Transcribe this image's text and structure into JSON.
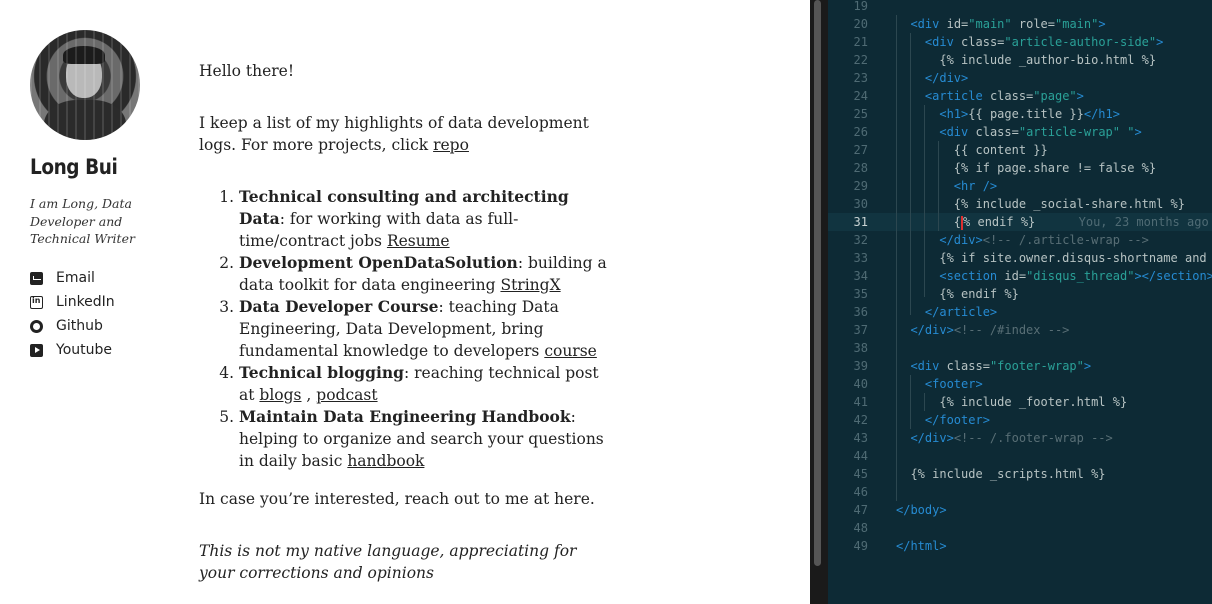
{
  "author": {
    "name": "Long Bui",
    "bio": "I am Long, Data Developer and Technical Writer",
    "links": [
      {
        "label": "Email",
        "icon": "envelope-icon"
      },
      {
        "label": "LinkedIn",
        "icon": "linkedin-icon"
      },
      {
        "label": "Github",
        "icon": "github-icon"
      },
      {
        "label": "Youtube",
        "icon": "youtube-icon"
      }
    ]
  },
  "content": {
    "greeting": "Hello there!",
    "intro_text": "I keep a list of my highlights of data development logs. For more projects, click ",
    "intro_link": "repo",
    "items": [
      {
        "title": "Technical consulting and architecting Data",
        "text": ": for working with data as full-time/contract jobs ",
        "links": [
          "Resume"
        ]
      },
      {
        "title": "Development OpenDataSolution",
        "text": ": building a data toolkit for data engineering ",
        "links": [
          "StringX"
        ]
      },
      {
        "title": "Data Developer Course",
        "text": ": teaching Data Engineering, Data Development, bring fundamental knowledge to developers ",
        "links": [
          "course"
        ]
      },
      {
        "title": "Technical blogging",
        "text": ": reaching technical post at ",
        "links": [
          "blogs",
          "podcast"
        ],
        "separator": " , "
      },
      {
        "title": "Maintain Data Engineering Handbook",
        "text": ": helping to organize and search your questions in daily basic ",
        "links": [
          "handbook"
        ]
      }
    ],
    "contact_line": "In case you’re interested, reach out to me at here.",
    "note": "This is not my native language, appreciating for your corrections and opinions"
  },
  "editor": {
    "lines": [
      {
        "n": "19",
        "html": ""
      },
      {
        "n": "20",
        "html": "  <span class='tag'>&lt;div</span> <span class='attr'>id=</span><span class='str'>\"main\"</span> <span class='attr'>role=</span><span class='str'>\"main\"</span><span class='tag'>&gt;</span>"
      },
      {
        "n": "21",
        "html": "    <span class='tag'>&lt;div</span> <span class='attr'>class=</span><span class='str'>\"article-author-side\"</span><span class='tag'>&gt;</span>"
      },
      {
        "n": "22",
        "html": "      {% include _author-bio.html %}"
      },
      {
        "n": "23",
        "html": "    <span class='tag'>&lt;/div&gt;</span>"
      },
      {
        "n": "24",
        "html": "    <span class='tag'>&lt;article</span> <span class='attr'>class=</span><span class='str'>\"page\"</span><span class='tag'>&gt;</span>"
      },
      {
        "n": "25",
        "html": "      <span class='tag'>&lt;h1&gt;</span>{{ page.title }}<span class='tag'>&lt;/h1&gt;</span>"
      },
      {
        "n": "26",
        "html": "      <span class='tag'>&lt;div</span> <span class='attr'>class=</span><span class='str'>\"article-wrap\" \"</span><span class='tag'>&gt;</span>"
      },
      {
        "n": "27",
        "html": "        {{ content }}"
      },
      {
        "n": "28",
        "html": "        {% if page.share != false %}"
      },
      {
        "n": "29",
        "html": "        <span class='tag'>&lt;hr /&gt;</span>"
      },
      {
        "n": "30",
        "html": "        {% include _social-share.html %}"
      },
      {
        "n": "31",
        "html": "        {<span class='cursor-mark'></span>% endif %}      <span class='blame'>You, 23 months ago</span>"
      },
      {
        "n": "32",
        "html": "      <span class='tag'>&lt;/div&gt;</span><span class='cmt'>&lt;!-- /.article-wrap --&gt;</span>"
      },
      {
        "n": "33",
        "html": "      {% if site.owner.disqus-shortname and"
      },
      {
        "n": "34",
        "html": "      <span class='tag'>&lt;section</span> <span class='attr'>id=</span><span class='str'>\"disqus_thread\"</span><span class='tag'>&gt;&lt;/section&gt;</span>"
      },
      {
        "n": "35",
        "html": "      {% endif %}"
      },
      {
        "n": "36",
        "html": "    <span class='tag'>&lt;/article&gt;</span>"
      },
      {
        "n": "37",
        "html": "  <span class='tag'>&lt;/div&gt;</span><span class='cmt'>&lt;!-- /#index --&gt;</span>"
      },
      {
        "n": "38",
        "html": ""
      },
      {
        "n": "39",
        "html": "  <span class='tag'>&lt;div</span> <span class='attr'>class=</span><span class='str'>\"footer-wrap\"</span><span class='tag'>&gt;</span>"
      },
      {
        "n": "40",
        "html": "    <span class='tag'>&lt;footer&gt;</span>"
      },
      {
        "n": "41",
        "html": "      {% include _footer.html %}"
      },
      {
        "n": "42",
        "html": "    <span class='tag'>&lt;/footer&gt;</span>"
      },
      {
        "n": "43",
        "html": "  <span class='tag'>&lt;/div&gt;</span><span class='cmt'>&lt;!-- /.footer-wrap --&gt;</span>"
      },
      {
        "n": "44",
        "html": ""
      },
      {
        "n": "45",
        "html": "  {% include _scripts.html %}"
      },
      {
        "n": "46",
        "html": ""
      },
      {
        "n": "47",
        "html": "<span class='tag'>&lt;/body&gt;</span>"
      },
      {
        "n": "48",
        "html": ""
      },
      {
        "n": "49",
        "html": "<span class='tag'>&lt;/html&gt;</span>"
      }
    ],
    "current_line": "31",
    "colors": {
      "background": "#0d2a35",
      "tag": "#268bd2",
      "string": "#2aa198",
      "comment": "#586e75",
      "text": "#b7c3c3"
    }
  }
}
